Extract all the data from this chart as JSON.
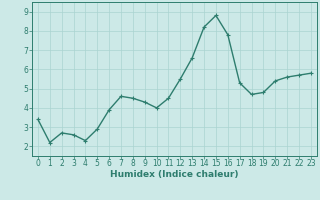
{
  "x": [
    0,
    1,
    2,
    3,
    4,
    5,
    6,
    7,
    8,
    9,
    10,
    11,
    12,
    13,
    14,
    15,
    16,
    17,
    18,
    19,
    20,
    21,
    22,
    23
  ],
  "y": [
    3.4,
    2.2,
    2.7,
    2.6,
    2.3,
    2.9,
    3.9,
    4.6,
    4.5,
    4.3,
    4.0,
    4.5,
    5.5,
    6.6,
    8.2,
    8.8,
    7.8,
    5.3,
    4.7,
    4.8,
    5.4,
    5.6,
    5.7,
    5.8
  ],
  "line_color": "#2e7d6e",
  "marker": "+",
  "marker_size": 3,
  "background_color": "#cce9e7",
  "grid_color": "#aad4d1",
  "xlabel": "Humidex (Indice chaleur)",
  "xlabel_fontsize": 6.5,
  "tick_fontsize": 5.5,
  "ylim": [
    1.5,
    9.5
  ],
  "xlim": [
    -0.5,
    23.5
  ],
  "yticks": [
    2,
    3,
    4,
    5,
    6,
    7,
    8,
    9
  ],
  "xticks": [
    0,
    1,
    2,
    3,
    4,
    5,
    6,
    7,
    8,
    9,
    10,
    11,
    12,
    13,
    14,
    15,
    16,
    17,
    18,
    19,
    20,
    21,
    22,
    23
  ],
  "line_width": 1.0
}
